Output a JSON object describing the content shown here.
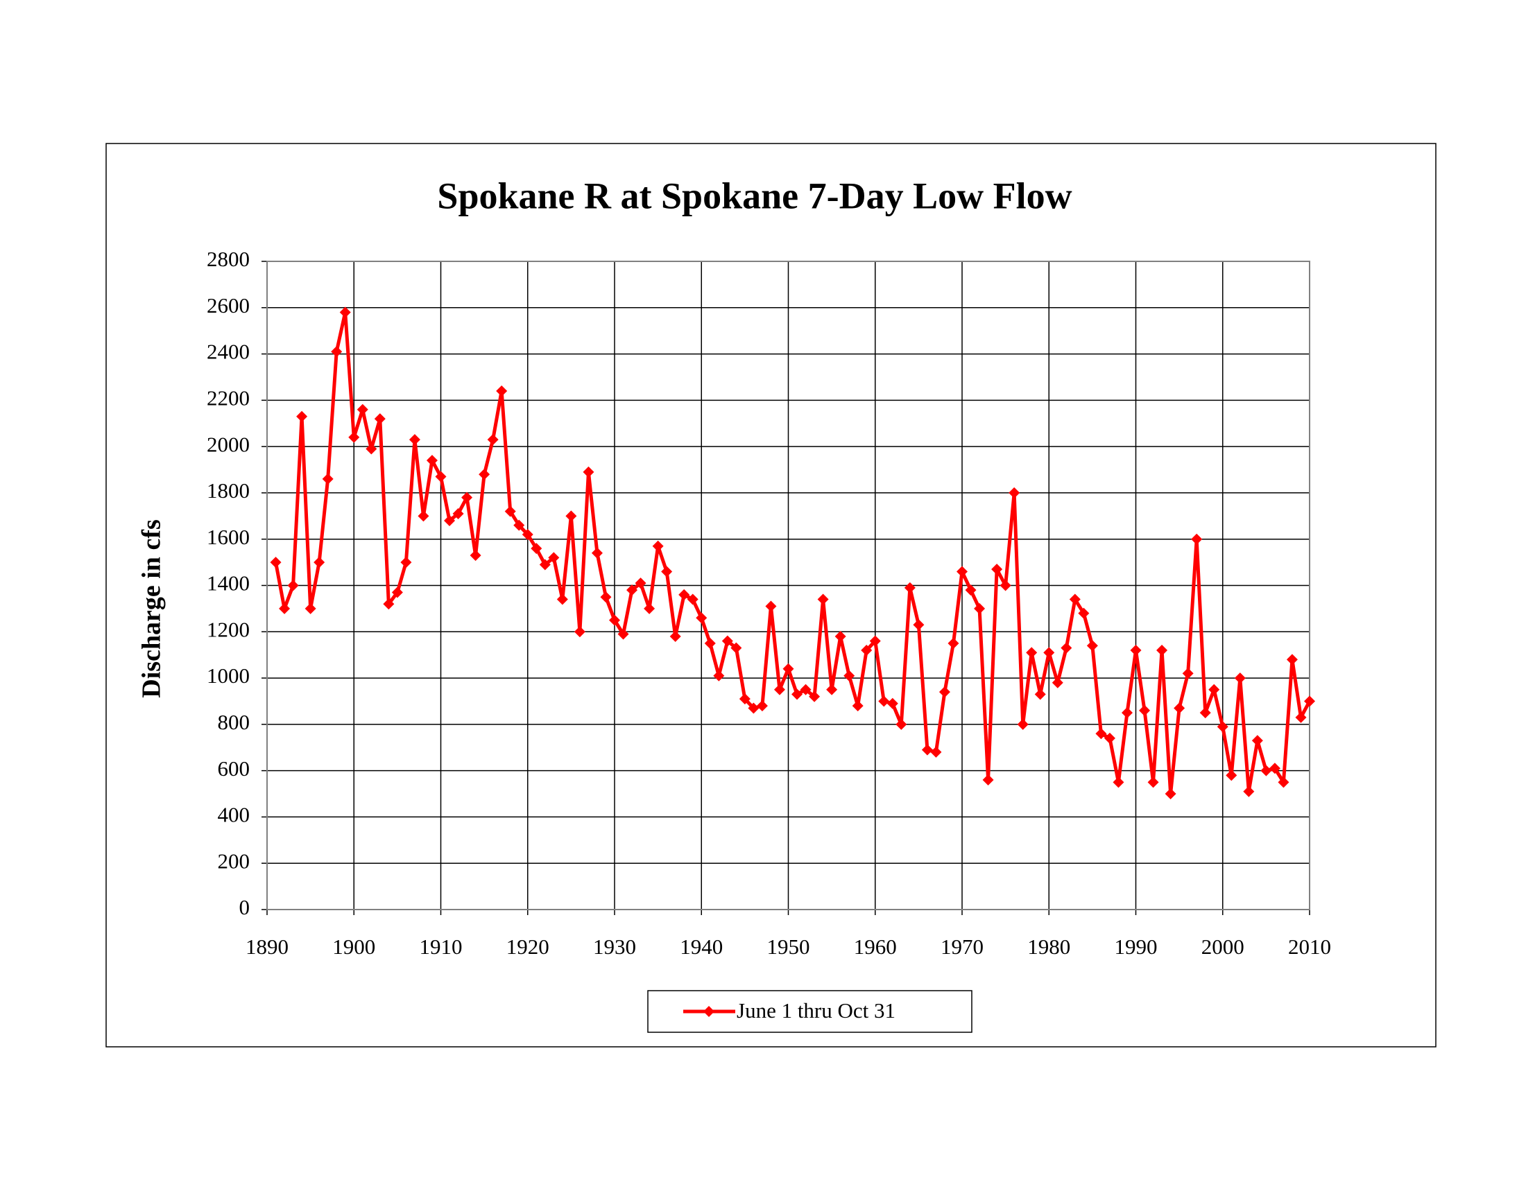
{
  "chart_data": {
    "type": "line",
    "title": "Spokane R at Spokane 7-Day Low Flow",
    "y_label": "Discharge in cfs",
    "x": [
      1891,
      1892,
      1893,
      1894,
      1895,
      1896,
      1897,
      1898,
      1899,
      1900,
      1901,
      1902,
      1903,
      1904,
      1905,
      1906,
      1907,
      1908,
      1909,
      1910,
      1911,
      1912,
      1913,
      1914,
      1915,
      1916,
      1917,
      1918,
      1919,
      1920,
      1921,
      1922,
      1923,
      1924,
      1925,
      1926,
      1927,
      1928,
      1929,
      1930,
      1931,
      1932,
      1933,
      1934,
      1935,
      1936,
      1937,
      1938,
      1939,
      1940,
      1941,
      1942,
      1943,
      1944,
      1945,
      1946,
      1947,
      1948,
      1949,
      1950,
      1951,
      1952,
      1953,
      1954,
      1955,
      1956,
      1957,
      1958,
      1959,
      1960,
      1961,
      1962,
      1963,
      1964,
      1965,
      1966,
      1967,
      1968,
      1969,
      1970,
      1971,
      1972,
      1973,
      1974,
      1975,
      1976,
      1977,
      1978,
      1979,
      1980,
      1981,
      1982,
      1983,
      1984,
      1985,
      1986,
      1987,
      1988,
      1989,
      1990,
      1991,
      1992,
      1993,
      1994,
      1995,
      1996,
      1997,
      1998,
      1999,
      2000,
      2001,
      2002,
      2003,
      2004,
      2005,
      2006,
      2007,
      2008,
      2009,
      2010
    ],
    "series": [
      {
        "name": "June 1 thru Oct 31",
        "color": "#ff0000",
        "values": [
          1500,
          1300,
          1400,
          2130,
          1300,
          1500,
          1860,
          2410,
          2580,
          2040,
          2160,
          1990,
          2120,
          1320,
          1370,
          1500,
          2030,
          1700,
          1940,
          1870,
          1680,
          1710,
          1780,
          1530,
          1880,
          2030,
          2240,
          1720,
          1660,
          1620,
          1560,
          1490,
          1520,
          1340,
          1700,
          1200,
          1890,
          1540,
          1350,
          1250,
          1190,
          1380,
          1410,
          1300,
          1570,
          1460,
          1180,
          1360,
          1340,
          1260,
          1150,
          1010,
          1160,
          1130,
          910,
          870,
          880,
          1310,
          950,
          1040,
          930,
          950,
          920,
          1340,
          950,
          1180,
          1010,
          880,
          1120,
          1160,
          900,
          890,
          800,
          1390,
          1230,
          690,
          680,
          940,
          1150,
          1460,
          1380,
          1300,
          560,
          1470,
          1400,
          1800,
          800,
          1110,
          930,
          1110,
          980,
          1130,
          1340,
          1280,
          1140,
          760,
          740,
          550,
          850,
          1120,
          860,
          550,
          1120,
          500,
          870,
          1020,
          1600,
          850,
          950,
          790,
          580,
          1000,
          510,
          730,
          600,
          610,
          550,
          1080,
          830,
          900
        ]
      }
    ],
    "xlim": [
      1890,
      2010
    ],
    "xticks": [
      1890,
      1900,
      1910,
      1920,
      1930,
      1940,
      1950,
      1960,
      1970,
      1980,
      1990,
      2000,
      2010
    ],
    "ylim": [
      0,
      2800
    ],
    "yticks": [
      0,
      200,
      400,
      600,
      800,
      1000,
      1200,
      1400,
      1600,
      1800,
      2000,
      2200,
      2400,
      2600,
      2800
    ],
    "grid": true,
    "legend": "bottom"
  }
}
